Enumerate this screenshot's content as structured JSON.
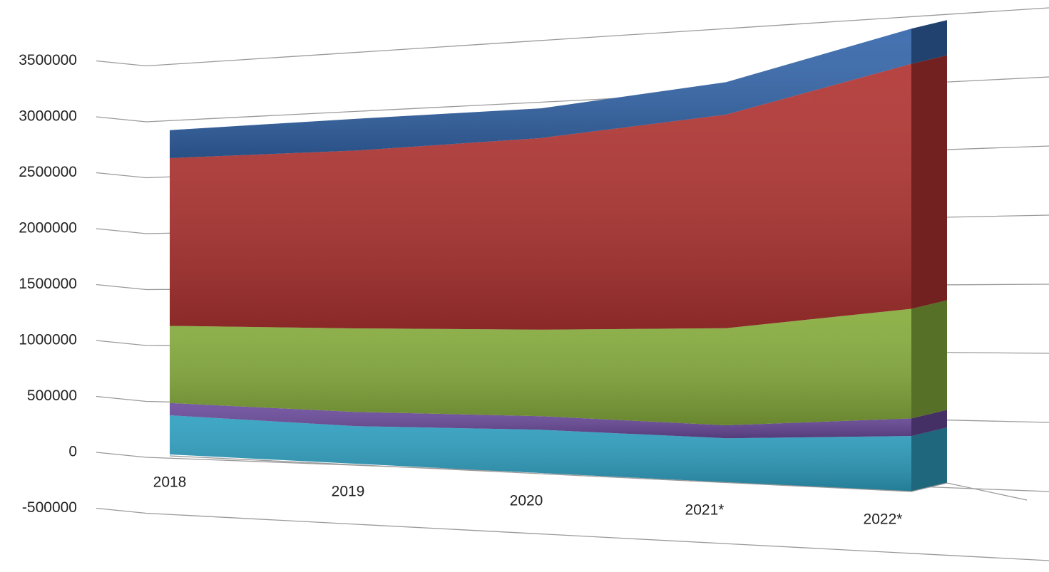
{
  "chart_data": {
    "type": "area3d",
    "categories": [
      "2018",
      "2019",
      "2020",
      "2021*",
      "2022*"
    ],
    "series": [
      {
        "color": "#2e9fc0",
        "values": [
          350000,
          320000,
          350000,
          340000,
          410000
        ]
      },
      {
        "color": "#6b4b9c",
        "values": [
          110000,
          120000,
          110000,
          100000,
          130000
        ]
      },
      {
        "color": "#86ac3c",
        "values": [
          690000,
          710000,
          700000,
          750000,
          810000
        ]
      },
      {
        "color": "#b03432",
        "values": [
          1500000,
          1510000,
          1550000,
          1650000,
          1810000
        ]
      },
      {
        "color": "#3466aa",
        "values": [
          250000,
          270000,
          240000,
          250000,
          260000
        ]
      }
    ],
    "stacked": true,
    "ylim": [
      -500000,
      3500000
    ],
    "yticks": [
      -500000,
      0,
      500000,
      1000000,
      1500000,
      2000000,
      2500000,
      3000000,
      3500000
    ],
    "grid": true
  }
}
